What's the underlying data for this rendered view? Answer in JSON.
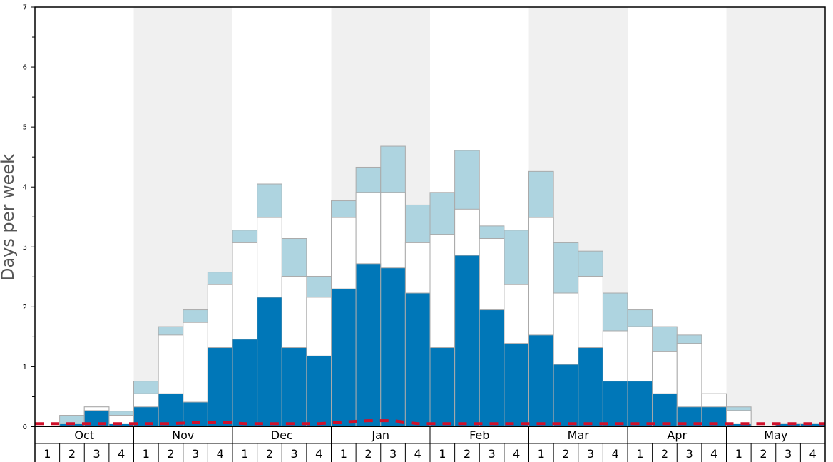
{
  "chart_data": {
    "type": "bar",
    "stacked": true,
    "ylabel": "Days per week",
    "ylim": [
      0,
      7
    ],
    "y_ticks": [
      "0",
      "1",
      "2",
      "3",
      "4",
      "5",
      "6",
      "7"
    ],
    "months": [
      "Oct",
      "Nov",
      "Dec",
      "Jan",
      "Feb",
      "Mar",
      "Apr",
      "May"
    ],
    "week_labels": [
      "1",
      "2",
      "3",
      "4"
    ],
    "shaded_months": [
      "Nov",
      "Jan",
      "Mar",
      "May"
    ],
    "colors": {
      "bottom": "#0077b8",
      "middle": "#ffffff",
      "top": "#aed4e0",
      "line": "#d0102a",
      "shade": "#f0f0f0",
      "edge": "#aaaaaa"
    },
    "categories": [
      "Oct 1",
      "Oct 2",
      "Oct 3",
      "Oct 4",
      "Nov 1",
      "Nov 2",
      "Nov 3",
      "Nov 4",
      "Dec 1",
      "Dec 2",
      "Dec 3",
      "Dec 4",
      "Jan 1",
      "Jan 2",
      "Jan 3",
      "Jan 4",
      "Feb 1",
      "Feb 2",
      "Feb 3",
      "Feb 4",
      "Mar 1",
      "Mar 2",
      "Mar 3",
      "Mar 4",
      "Apr 1",
      "Apr 2",
      "Apr 3",
      "Apr 4",
      "May 1",
      "May 2",
      "May 3",
      "May 4"
    ],
    "stack_totals": [
      {
        "values": [
          0,
          0.05,
          0.27,
          0.05,
          0.33,
          0.55,
          0.41,
          1.32,
          1.46,
          2.16,
          1.32,
          1.18,
          2.3,
          2.72,
          2.65,
          2.23,
          1.32,
          2.86,
          1.95,
          1.39,
          1.53,
          1.04,
          1.32,
          0.76,
          0.76,
          0.55,
          0.33,
          0.33,
          0.05,
          0,
          0.05,
          0.05
        ]
      },
      {
        "values": [
          0,
          0.05,
          0.33,
          0.19,
          0.55,
          1.53,
          1.74,
          2.37,
          3.07,
          3.49,
          2.51,
          2.16,
          3.49,
          3.91,
          3.91,
          3.07,
          3.21,
          3.63,
          3.14,
          2.37,
          3.49,
          2.23,
          2.51,
          1.6,
          1.67,
          1.25,
          1.39,
          0.55,
          0.27,
          0,
          0.05,
          0.05
        ]
      },
      {
        "values": [
          0,
          0.19,
          0.33,
          0.26,
          0.76,
          1.67,
          1.95,
          2.58,
          3.28,
          4.05,
          3.14,
          2.51,
          3.77,
          4.33,
          4.68,
          3.7,
          3.91,
          4.61,
          3.35,
          3.28,
          4.26,
          3.07,
          2.93,
          2.23,
          1.95,
          1.67,
          1.53,
          0.55,
          0.33,
          0,
          0.05,
          0.05
        ]
      }
    ],
    "line_values": [
      0.05,
      0.05,
      0.05,
      0.05,
      0.05,
      0.05,
      0.07,
      0.08,
      0.05,
      0.05,
      0.05,
      0.05,
      0.08,
      0.1,
      0.1,
      0.05,
      0.05,
      0.05,
      0.05,
      0.05,
      0.05,
      0.05,
      0.05,
      0.05,
      0.05,
      0.05,
      0.05,
      0.05,
      0.05,
      0.05,
      0.05,
      0.05
    ]
  }
}
